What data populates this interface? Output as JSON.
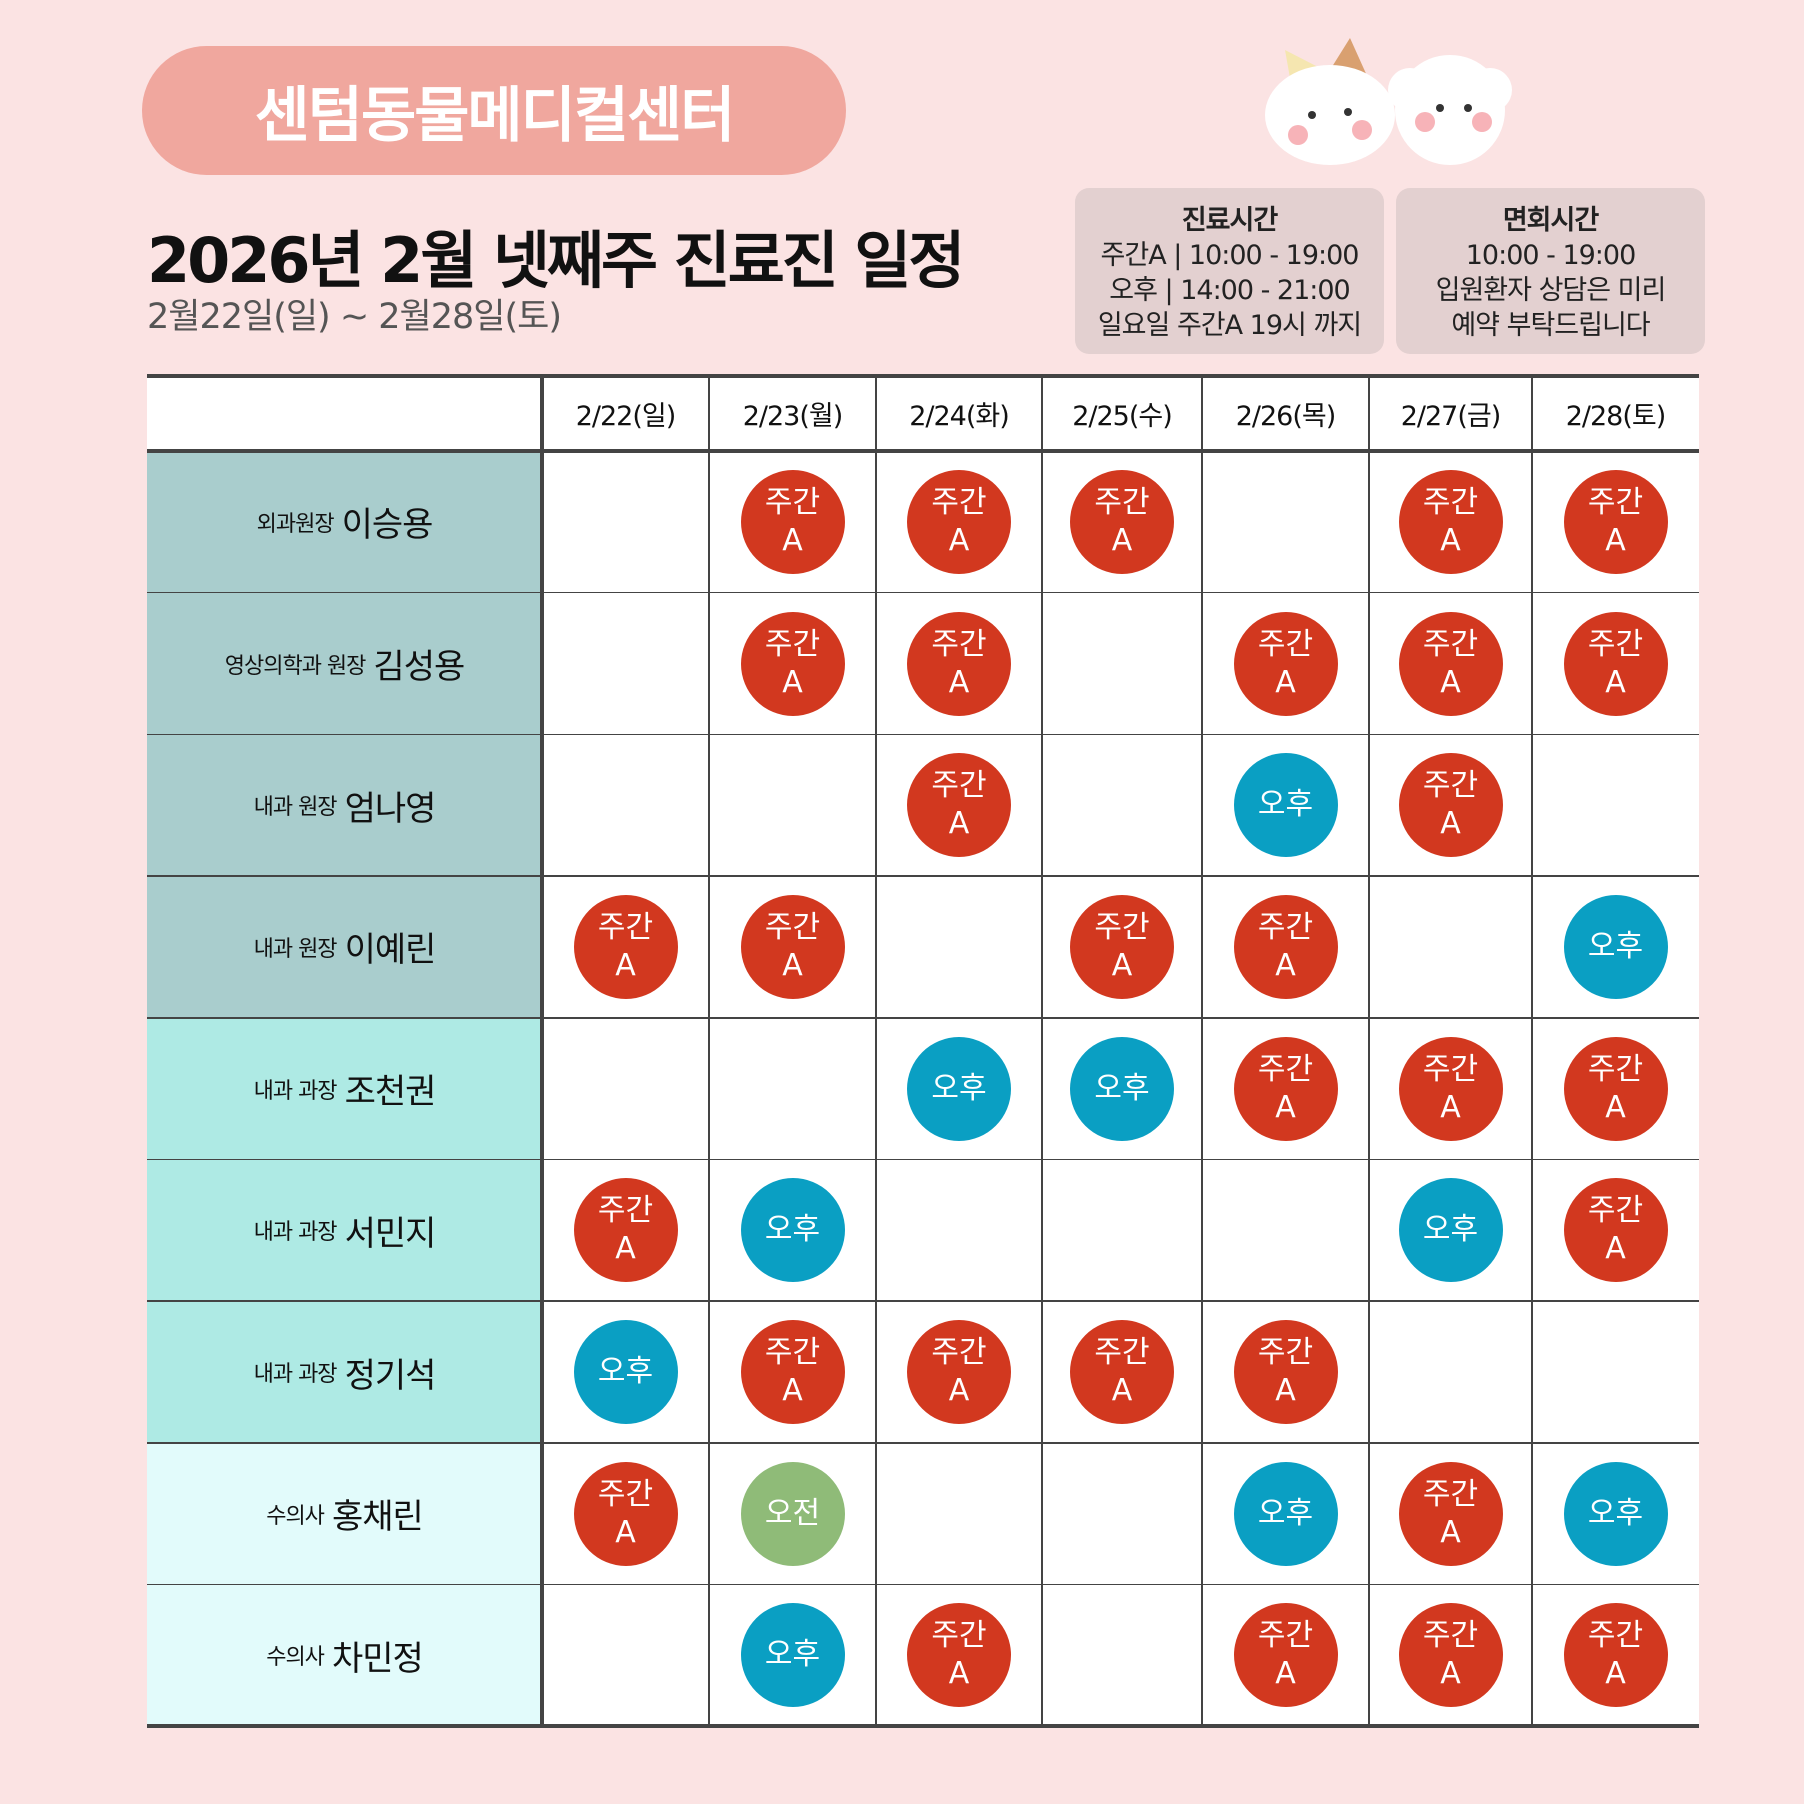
{
  "header": {
    "brand": "센텀동물메디컬센터",
    "title": "2026년 2월 넷째주 진료진 일정",
    "date_range": "2월22일(일) ~ 2월28일(토)"
  },
  "info": [
    {
      "title": "진료시간",
      "lines": [
        "주간A | 10:00 - 19:00",
        "오후 | 14:00 - 21:00",
        "일요일 주간A 19시 까지"
      ]
    },
    {
      "title": "면회시간",
      "lines": [
        "10:00 - 19:00",
        "입원환자 상담은 미리",
        "예약 부탁드립니다"
      ]
    }
  ],
  "shift_colors": {
    "주간\nA": "#d2381f",
    "오후": "#0a9fc3",
    "오전": "#8fbb78"
  },
  "table": {
    "columns": [
      "2/22(일)",
      "2/23(월)",
      "2/24(화)",
      "2/25(수)",
      "2/26(목)",
      "2/27(금)",
      "2/28(토)"
    ],
    "rows": [
      {
        "role": "외과원장",
        "name": "이승용",
        "color": "#a9cdcd",
        "cells": [
          null,
          "주간\nA",
          "주간\nA",
          "주간\nA",
          null,
          "주간\nA",
          "주간\nA"
        ]
      },
      {
        "role": "영상의학과 원장",
        "name": "김성용",
        "color": "#a9cdcd",
        "cells": [
          null,
          "주간\nA",
          "주간\nA",
          null,
          "주간\nA",
          "주간\nA",
          "주간\nA"
        ]
      },
      {
        "role": "내과 원장",
        "name": "엄나영",
        "color": "#a9cdcd",
        "cells": [
          null,
          null,
          "주간\nA",
          null,
          "오후",
          "주간\nA",
          null
        ]
      },
      {
        "role": "내과 원장",
        "name": "이예린",
        "color": "#a9cdcd",
        "cells": [
          "주간\nA",
          "주간\nA",
          null,
          "주간\nA",
          "주간\nA",
          null,
          "오후"
        ]
      },
      {
        "role": "내과 과장",
        "name": "조천권",
        "color": "#aeeae4",
        "cells": [
          null,
          null,
          "오후",
          "오후",
          "주간\nA",
          "주간\nA",
          "주간\nA"
        ]
      },
      {
        "role": "내과 과장",
        "name": "서민지",
        "color": "#aeeae4",
        "cells": [
          "주간\nA",
          "오후",
          null,
          null,
          null,
          "오후",
          "주간\nA"
        ]
      },
      {
        "role": "내과 과장",
        "name": "정기석",
        "color": "#aeeae4",
        "cells": [
          "오후",
          "주간\nA",
          "주간\nA",
          "주간\nA",
          "주간\nA",
          null,
          null
        ]
      },
      {
        "role": "수의사",
        "name": "홍채린",
        "color": "#e2fbfb",
        "cells": [
          "주간\nA",
          "오전",
          null,
          null,
          "오후",
          "주간\nA",
          "오후"
        ]
      },
      {
        "role": "수의사",
        "name": "차민정",
        "color": "#e2fbfb",
        "cells": [
          null,
          "오후",
          "주간\nA",
          null,
          "주간\nA",
          "주간\nA",
          "주간\nA"
        ]
      }
    ]
  }
}
